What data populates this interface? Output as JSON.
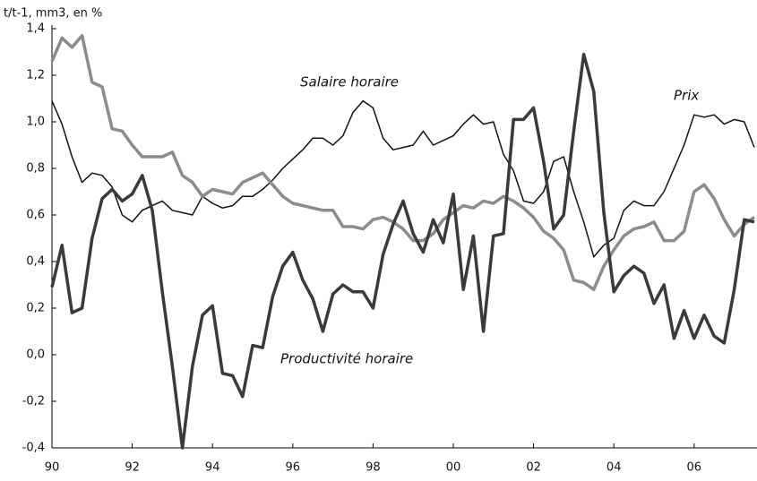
{
  "chart_data": {
    "type": "line",
    "y_label": "t/t-1, mm3, en %",
    "categories": [
      "90",
      null,
      null,
      null,
      null,
      null,
      null,
      null,
      "92",
      null,
      null,
      null,
      null,
      null,
      null,
      null,
      "94",
      null,
      null,
      null,
      null,
      null,
      null,
      null,
      "96",
      null,
      null,
      null,
      null,
      null,
      null,
      null,
      "98",
      null,
      null,
      null,
      null,
      null,
      null,
      null,
      "00",
      null,
      null,
      null,
      null,
      null,
      null,
      null,
      "02",
      null,
      null,
      null,
      null,
      null,
      null,
      null,
      "04",
      null,
      null,
      null,
      null,
      null,
      null,
      null,
      "06",
      null,
      null,
      null,
      null,
      null,
      null
    ],
    "series": [
      {
        "name": "Salaire horaire",
        "color": "#111111",
        "width": 1.5,
        "values": [
          1.09,
          0.99,
          0.85,
          0.74,
          0.78,
          0.77,
          0.72,
          0.6,
          0.57,
          0.62,
          0.64,
          0.66,
          0.62,
          0.61,
          0.6,
          0.68,
          0.65,
          0.63,
          0.64,
          0.68,
          0.68,
          0.71,
          0.75,
          0.8,
          0.84,
          0.88,
          0.93,
          0.93,
          0.9,
          0.94,
          1.04,
          1.09,
          1.06,
          0.93,
          0.88,
          0.89,
          0.9,
          0.96,
          0.9,
          0.92,
          0.94,
          0.99,
          1.03,
          0.99,
          1.0,
          0.86,
          0.79,
          0.66,
          0.65,
          0.7,
          0.83,
          0.85,
          0.7,
          0.57,
          0.42,
          0.47,
          0.5,
          0.62,
          0.66,
          0.64,
          0.64,
          0.7,
          0.8,
          0.9,
          1.03,
          1.02,
          1.03,
          0.99,
          1.01,
          1.0,
          0.89
        ]
      },
      {
        "name": "Prix",
        "color": "#8c8c8c",
        "width": 3.5,
        "values": [
          1.26,
          1.36,
          1.32,
          1.37,
          1.17,
          1.15,
          0.97,
          0.96,
          0.9,
          0.85,
          0.85,
          0.85,
          0.87,
          0.77,
          0.74,
          0.68,
          0.71,
          0.7,
          0.69,
          0.74,
          0.76,
          0.78,
          0.73,
          0.68,
          0.65,
          0.64,
          0.63,
          0.62,
          0.62,
          0.55,
          0.55,
          0.54,
          0.58,
          0.59,
          0.57,
          0.54,
          0.49,
          0.49,
          0.52,
          0.58,
          0.61,
          0.64,
          0.63,
          0.66,
          0.65,
          0.68,
          0.66,
          0.63,
          0.59,
          0.53,
          0.5,
          0.45,
          0.32,
          0.31,
          0.28,
          0.38,
          0.45,
          0.51,
          0.54,
          0.55,
          0.57,
          0.49,
          0.49,
          0.53,
          0.7,
          0.73,
          0.67,
          0.58,
          0.51,
          0.56,
          0.59
        ]
      },
      {
        "name": "Productivité horaire",
        "color": "#3a3a3a",
        "width": 3.5,
        "values": [
          0.29,
          0.47,
          0.18,
          0.2,
          0.5,
          0.67,
          0.71,
          0.66,
          0.69,
          0.77,
          0.62,
          0.27,
          -0.05,
          -0.4,
          -0.05,
          0.17,
          0.21,
          -0.08,
          -0.09,
          -0.18,
          0.04,
          0.03,
          0.25,
          0.38,
          0.44,
          0.32,
          0.24,
          0.1,
          0.26,
          0.3,
          0.27,
          0.27,
          0.2,
          0.43,
          0.56,
          0.66,
          0.52,
          0.44,
          0.58,
          0.48,
          0.69,
          0.28,
          0.51,
          0.1,
          0.51,
          0.52,
          1.01,
          1.01,
          1.06,
          0.83,
          0.54,
          0.6,
          0.96,
          1.29,
          1.13,
          0.61,
          0.27,
          0.34,
          0.38,
          0.35,
          0.22,
          0.3,
          0.07,
          0.19,
          0.07,
          0.17,
          0.08,
          0.05,
          0.28,
          0.58,
          0.57
        ]
      }
    ],
    "ylim": [
      -0.4,
      1.4
    ],
    "yticks": [
      {
        "value": -0.4,
        "label": "-0,4"
      },
      {
        "value": -0.2,
        "label": "-0,2"
      },
      {
        "value": 0,
        "label": "0,0"
      },
      {
        "value": 0.2,
        "label": "0,2"
      },
      {
        "value": 0.4,
        "label": "0,4"
      },
      {
        "value": 0.6,
        "label": "0,6"
      },
      {
        "value": 0.8,
        "label": "0,8"
      },
      {
        "value": 1.0,
        "label": "1,0"
      },
      {
        "value": 1.2,
        "label": "1,2"
      },
      {
        "value": 1.4,
        "label": "1,4"
      }
    ],
    "grid": false
  }
}
